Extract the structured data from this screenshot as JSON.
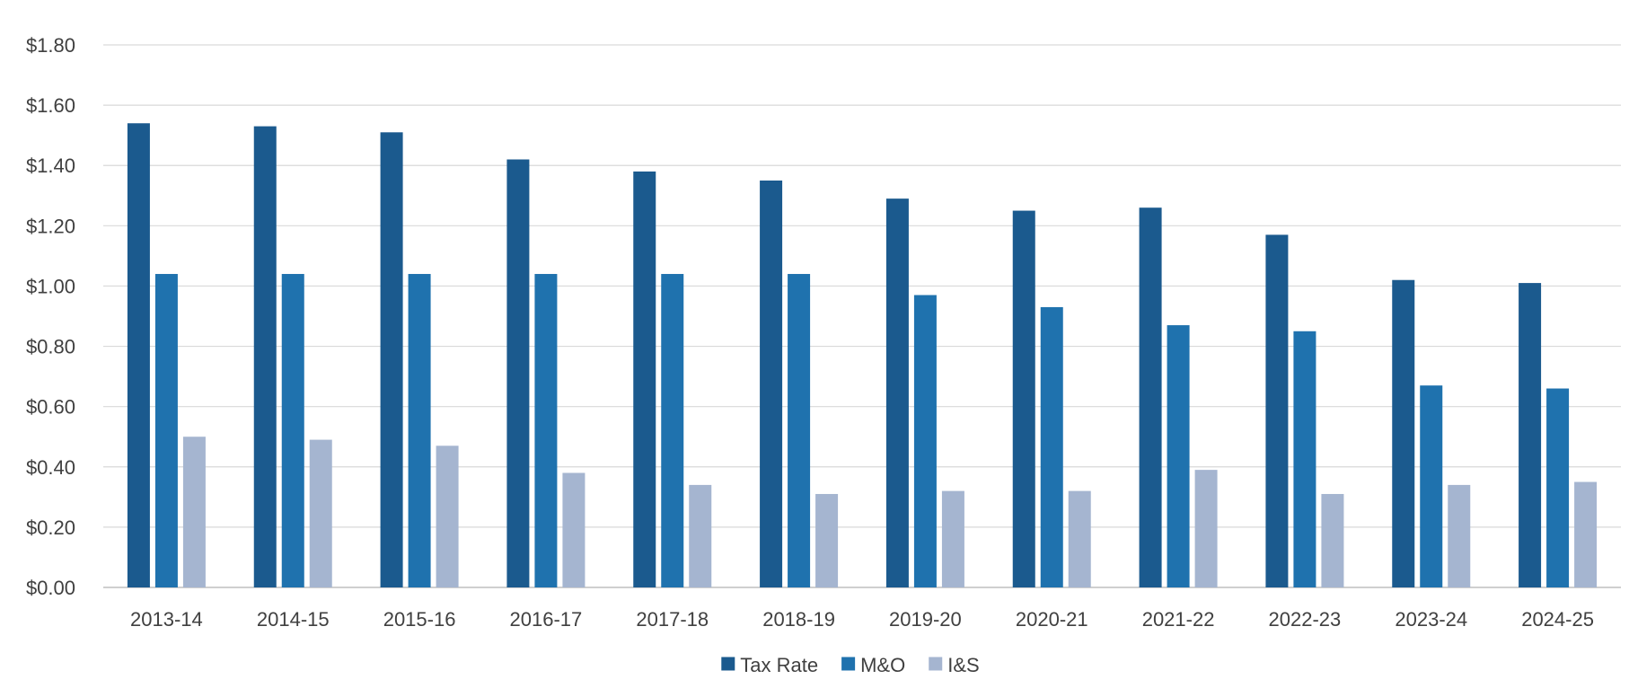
{
  "chart_data": {
    "type": "bar",
    "title": "",
    "xlabel": "",
    "ylabel": "",
    "ylim": [
      0,
      1.8
    ],
    "ytick_step": 0.2,
    "ytick_labels": [
      "$0.00",
      "$0.20",
      "$0.40",
      "$0.60",
      "$0.80",
      "$1.00",
      "$1.20",
      "$1.40",
      "$1.60",
      "$1.80"
    ],
    "grid": true,
    "legend_position": "bottom-center",
    "categories": [
      "2013-14",
      "2014-15",
      "2015-16",
      "2016-17",
      "2017-18",
      "2018-19",
      "2019-20",
      "2020-21",
      "2021-22",
      "2022-23",
      "2023-24",
      "2024-25"
    ],
    "series": [
      {
        "name": "Tax Rate",
        "color": "#1b5a8e",
        "values": [
          1.54,
          1.53,
          1.51,
          1.42,
          1.38,
          1.35,
          1.29,
          1.25,
          1.26,
          1.17,
          1.02,
          1.01
        ]
      },
      {
        "name": "M&O",
        "color": "#1f72ae",
        "values": [
          1.04,
          1.04,
          1.04,
          1.04,
          1.04,
          1.04,
          0.97,
          0.93,
          0.87,
          0.85,
          0.67,
          0.66
        ]
      },
      {
        "name": "I&S",
        "color": "#a5b5d0",
        "values": [
          0.5,
          0.49,
          0.47,
          0.38,
          0.34,
          0.31,
          0.32,
          0.32,
          0.39,
          0.31,
          0.34,
          0.35
        ]
      }
    ]
  }
}
